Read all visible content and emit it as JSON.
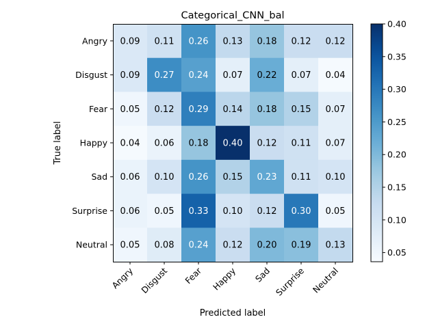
{
  "chart_data": {
    "type": "heatmap",
    "title": "Categorical_CNN_bal",
    "xlabel": "Predicted label",
    "ylabel": "True label",
    "x_categories": [
      "Angry",
      "Disgust",
      "Fear",
      "Happy",
      "Sad",
      "Surprise",
      "Neutral"
    ],
    "y_categories": [
      "Angry",
      "Disgust",
      "Fear",
      "Happy",
      "Sad",
      "Surprise",
      "Neutral"
    ],
    "values": [
      [
        0.09,
        0.11,
        0.26,
        0.13,
        0.18,
        0.12,
        0.12
      ],
      [
        0.09,
        0.27,
        0.24,
        0.07,
        0.22,
        0.07,
        0.04
      ],
      [
        0.05,
        0.12,
        0.29,
        0.14,
        0.18,
        0.15,
        0.07
      ],
      [
        0.04,
        0.06,
        0.18,
        0.4,
        0.12,
        0.11,
        0.07
      ],
      [
        0.06,
        0.1,
        0.26,
        0.15,
        0.23,
        0.11,
        0.1
      ],
      [
        0.06,
        0.05,
        0.33,
        0.1,
        0.12,
        0.3,
        0.05
      ],
      [
        0.05,
        0.08,
        0.24,
        0.12,
        0.2,
        0.19,
        0.13
      ]
    ],
    "colormap": "Blues",
    "vmin": 0.036,
    "vmax": 0.4,
    "colorbar_ticks": [
      "0.05",
      "0.10",
      "0.15",
      "0.20",
      "0.25",
      "0.30",
      "0.35",
      "0.40"
    ],
    "grid": false,
    "colors": {
      "low": "#f7fbff",
      "high": "#08306b",
      "text_dark": "#000000",
      "text_light": "#ffffff"
    }
  }
}
